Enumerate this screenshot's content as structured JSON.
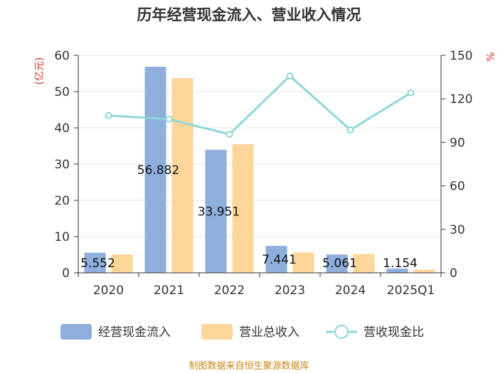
{
  "chart_data": {
    "type": "bar",
    "title": "历年经营现金流入、营业收入情况",
    "categories": [
      "2020",
      "2021",
      "2022",
      "2023",
      "2024",
      "2025Q1"
    ],
    "series": [
      {
        "name": "经营现金流入",
        "kind": "bar",
        "axis": "left",
        "color": "#8eaedb",
        "values": [
          5.552,
          56.882,
          33.951,
          7.441,
          5.061,
          1.154
        ],
        "labels": [
          "5.552",
          "56.882",
          "33.951",
          "7.441",
          "5.061",
          "1.154"
        ]
      },
      {
        "name": "营业总收入",
        "kind": "bar",
        "axis": "left",
        "color": "#fdd699",
        "values": [
          5.1,
          53.7,
          35.5,
          5.6,
          5.2,
          0.9
        ]
      },
      {
        "name": "营收现金比",
        "kind": "line",
        "axis": "right",
        "color": "#8ed7d9",
        "values": [
          108.5,
          106,
          95.6,
          135.8,
          98.6,
          124.2
        ]
      }
    ],
    "y_left": {
      "label": "(亿元)",
      "ylim": [
        0,
        60
      ],
      "ticks": [
        0,
        10,
        20,
        30,
        40,
        50,
        60
      ]
    },
    "y_right": {
      "label": "%",
      "ylim": [
        0,
        150
      ],
      "ticks": [
        0,
        30,
        60,
        90,
        120,
        150
      ]
    },
    "legend_position": "bottom",
    "grid": true,
    "source": "制图数据来自恒生聚源数据库"
  }
}
